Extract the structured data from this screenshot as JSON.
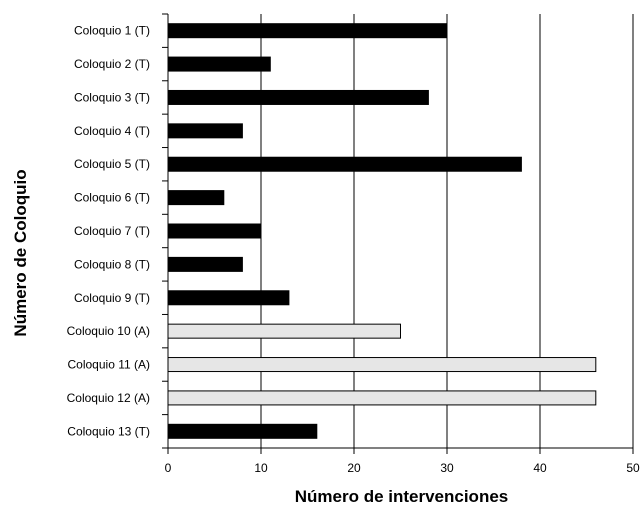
{
  "chart_data": {
    "type": "bar",
    "orientation": "horizontal",
    "categories": [
      "Coloquio 1 (T)",
      "Coloquio 2 (T)",
      "Coloquio 3 (T)",
      "Coloquio 4 (T)",
      "Coloquio 5 (T)",
      "Coloquio 6 (T)",
      "Coloquio 7 (T)",
      "Coloquio 8 (T)",
      "Coloquio 9 (T)",
      "Coloquio 10 (A)",
      "Coloquio 11 (A)",
      "Coloquio 12 (A)",
      "Coloquio 13 (T)"
    ],
    "values": [
      30,
      11,
      28,
      8,
      38,
      6,
      10,
      8,
      13,
      25,
      46,
      46,
      16
    ],
    "bar_colors": [
      "#000000",
      "#000000",
      "#000000",
      "#000000",
      "#000000",
      "#000000",
      "#000000",
      "#000000",
      "#000000",
      "#e6e6e6",
      "#e6e6e6",
      "#e6e6e6",
      "#000000"
    ],
    "xlabel": "Número de intervenciones",
    "ylabel": "Número de Coloquio",
    "xlim": [
      0,
      50
    ],
    "xticks": [
      0,
      10,
      20,
      30,
      40,
      50
    ],
    "grid": "vertical"
  }
}
